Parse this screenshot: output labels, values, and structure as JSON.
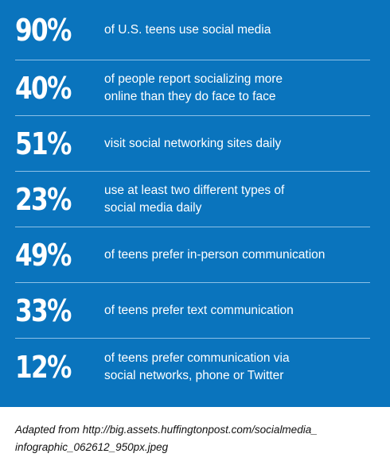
{
  "stats": [
    {
      "percent": "90%",
      "lines": [
        "of U.S. teens use social media"
      ]
    },
    {
      "percent": "40%",
      "lines": [
        "of people report socializing more",
        "online than they do face to face"
      ]
    },
    {
      "percent": "51%",
      "lines": [
        "visit social networking sites daily"
      ]
    },
    {
      "percent": "23%",
      "lines": [
        "use at least two different types of",
        "social media daily"
      ]
    },
    {
      "percent": "49%",
      "lines": [
        "of teens prefer in-person communication"
      ]
    },
    {
      "percent": "33%",
      "lines": [
        "of teens prefer text communication"
      ]
    },
    {
      "percent": "12%",
      "lines": [
        "of teens prefer communication via",
        "social networks, phone or Twitter"
      ]
    }
  ],
  "caption": {
    "line1": "Adapted from http://big.assets.huffingtonpost.com/socialmedia_",
    "line2": "infographic_062612_950px.jpeg"
  },
  "colors": {
    "panel_background": "#0a74bd",
    "divider": "#8cc0e6",
    "text": "#ffffff"
  }
}
